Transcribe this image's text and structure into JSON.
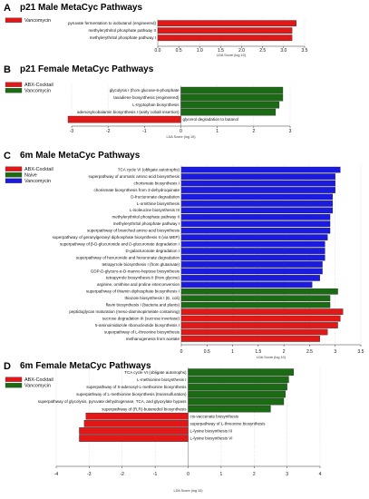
{
  "figure": {
    "colors": {
      "Vancomycin": "#1b6b14",
      "ABX-Cocktail": "#e21818",
      "Naive": "#1a1ae0"
    }
  },
  "chart_data": [
    {
      "id": "A",
      "type": "bar",
      "orientation": "horizontal",
      "panel_letter": "A",
      "title": "p21 Male MetaCyc Pathways",
      "xlabel": "LDA Score (log 10)",
      "xlim": [
        0,
        3.5
      ],
      "xticks": [
        "0.0",
        "0.5",
        "1.0",
        "1.5",
        "2.0",
        "2.5",
        "3.0",
        "3.5"
      ],
      "legend": [
        {
          "name": "Vancomycin",
          "color": "#e21818"
        }
      ],
      "series": [
        {
          "name": "Vancomycin",
          "color": "#e21818",
          "categories": [
            "pyruvate fermentation to isobutanol (engineered)",
            "methylerythritol phosphate pathway II",
            "methylerythritol phosphate pathway I"
          ],
          "values": [
            3.3,
            3.2,
            3.2
          ]
        }
      ]
    },
    {
      "id": "B",
      "type": "bar",
      "orientation": "horizontal",
      "panel_letter": "B",
      "title": "p21 Female MetaCyc Pathways",
      "xlabel": "LDA Score (log 10)",
      "xlim": [
        -3,
        3
      ],
      "xticks": [
        "-3",
        "-2",
        "-1",
        "0",
        "1",
        "2",
        "3"
      ],
      "legend": [
        {
          "name": "ABX-Cocktail",
          "color": "#e21818"
        },
        {
          "name": "Vancomycin",
          "color": "#1b6b14"
        }
      ],
      "series": [
        {
          "name": "Vancomycin",
          "color": "#1b6b14",
          "categories": [
            "glycolysis I (from glucose-6-phosphate",
            "taxadiene biosynthesis (engineered)",
            "L-tryptophan biosynthesis",
            "adenosylcobalamin biosynthesis I (early cobalt insertion)"
          ],
          "values": [
            2.8,
            2.8,
            2.7,
            2.6
          ]
        },
        {
          "name": "ABX-Cocktail",
          "color": "#e21818",
          "categories": [
            "glycerol degradation to butanol"
          ],
          "values": [
            -3.1
          ]
        }
      ]
    },
    {
      "id": "C",
      "type": "bar",
      "orientation": "horizontal",
      "panel_letter": "C",
      "title": "6m Male MetaCyc Pathways",
      "xlabel": "LDA Score (log 10)",
      "xlim": [
        0,
        3.5
      ],
      "xticks": [
        "0",
        "0.5",
        "1",
        "1.5",
        "2",
        "2.5",
        "3",
        "3.5"
      ],
      "legend": [
        {
          "name": "ABX-Cocktail",
          "color": "#e21818"
        },
        {
          "name": "Naive",
          "color": "#1b6b14"
        },
        {
          "name": "Vancomycin",
          "color": "#1a1ae0"
        }
      ],
      "series": [
        {
          "name": "Vancomycin",
          "color": "#1a1ae0",
          "categories": [
            "TCA cycle VI (obligate autotrophs)",
            "superpathway of aromatic amino acid biosynthesis",
            "chorismate biosynthesis I",
            "chorismate biosynthesis from 3-dehydroquinate",
            "D-fructuronate degradation",
            "L-ornithine biosynthesis",
            "L-isoleucine biosynthesis III",
            "methylerythritol phosphate pathway II",
            "methylerythritol phosphate pathway I",
            "superpathway of branched amino acid biosynthesis",
            "superpathway of geranylgeranyl diphosphate biosynthesis II (via MEP)",
            "superpathway of β-D-glucuronide and D-glucuronate degradation I",
            "D-galacturonate degradation I",
            "superpathway of hexuronide and hexuronate degradation",
            "tetrapyrrole biosynthesis I (from glutamate)",
            "GDP-D-glycero-α-D-manno-heptose biosynthesis",
            "tetrapyrrole biosynthesis II (from glycine)",
            "arginine, ornithine and proline interconversion"
          ],
          "values": [
            3.1,
            3.0,
            3.0,
            3.0,
            2.95,
            2.95,
            2.95,
            2.9,
            2.9,
            2.9,
            2.85,
            2.8,
            2.8,
            2.8,
            2.75,
            2.75,
            2.7,
            2.55
          ]
        },
        {
          "name": "Naive",
          "color": "#1b6b14",
          "categories": [
            "superpathway of thiamin diphosphate biosynthesis I",
            "thiazole biosynthesis I (E. coli)",
            "flavin biosynthesis I (bacteria and plants)"
          ],
          "values": [
            3.05,
            2.9,
            2.9
          ]
        },
        {
          "name": "ABX-Cocktail",
          "color": "#e21818",
          "categories": [
            "peptidoglycan maturation (meso-diaminopimelate containing)",
            "sucrose degradation III (sucrose invertase)",
            "5-aminoimidazole ribonucleotide biosynthesis I",
            "superpathway of L-threonine biosynthesis",
            "methanogenesis from acetate"
          ],
          "values": [
            3.15,
            3.1,
            3.05,
            2.85,
            2.7
          ]
        }
      ]
    },
    {
      "id": "D",
      "type": "bar",
      "orientation": "horizontal",
      "panel_letter": "D",
      "title": "6m Female MetaCyc Pathways",
      "xlabel": "LDA Score (log 10)",
      "xlim": [
        -4,
        4
      ],
      "xticks": [
        "-4",
        "-3",
        "-2",
        "-1",
        "0",
        "1",
        "2",
        "3",
        "4"
      ],
      "legend": [
        {
          "name": "ABX-Cocktail",
          "color": "#e21818"
        },
        {
          "name": "Vancomycin",
          "color": "#1b6b14"
        }
      ],
      "series": [
        {
          "name": "Vancomycin",
          "color": "#1b6b14",
          "categories": [
            "TCA cycle VI (obligate autotrophs)",
            "L-methionine biosynthesis I",
            "superpathway of S-adenosyl-L-methionine biosynthesis",
            "superpathway of L-methionine biosynthesis (transsulfuration)",
            "superpathway of glycolysis, pyruvate dehydrogenase, TCA, and glyoxylate bypass",
            "superpathway of (R,R)-butanediol biosynthesis"
          ],
          "values": [
            3.2,
            3.05,
            3.0,
            2.95,
            2.9,
            2.5
          ]
        },
        {
          "name": "ABX-Cocktail",
          "color": "#e21818",
          "categories": [
            "cis-vaccenate biosynthesis",
            "superpathway of L-threonine biosynthesis",
            "L-lysine biosynthesis III",
            "L-lysine biosynthesis VI"
          ],
          "values": [
            -3.1,
            -3.15,
            -3.3,
            -3.3
          ]
        }
      ]
    }
  ]
}
